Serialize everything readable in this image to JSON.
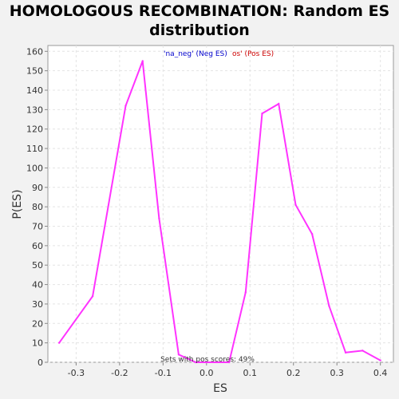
{
  "chart_data": {
    "type": "line",
    "title": "HOMOLOGOUS RECOMBINATION: Random ES distribution",
    "xlabel": "ES",
    "ylabel": "P(ES)",
    "xlim": [
      -0.365,
      0.43
    ],
    "ylim": [
      0,
      163
    ],
    "xticks": [
      -0.3,
      -0.2,
      -0.1,
      0.0,
      0.1,
      0.2,
      0.3,
      0.4
    ],
    "xtick_labels": [
      "-0.3",
      "-0.2",
      "-0.1",
      "0.0",
      "0.1",
      "0.2",
      "0.3",
      "0.4"
    ],
    "yticks": [
      0,
      10,
      20,
      30,
      40,
      50,
      60,
      70,
      80,
      90,
      100,
      110,
      120,
      130,
      140,
      150,
      160
    ],
    "grid": true,
    "legend": {
      "neg_text": "'na_neg' (Neg ES)",
      "pos_text": "os' (Pos ES)",
      "neg_color": "#0000cc",
      "pos_color": "#cc0000"
    },
    "annotation": "Sets with pos scores: 49%",
    "series": [
      {
        "color": "#ff33ff",
        "x": [
          -0.339,
          -0.262,
          -0.186,
          -0.147,
          -0.109,
          -0.064,
          -0.025,
          0.052,
          0.09,
          0.128,
          0.166,
          0.205,
          0.243,
          0.282,
          0.32,
          0.359,
          0.4
        ],
        "y": [
          10,
          34,
          132,
          155,
          74,
          4,
          0,
          0,
          36,
          128,
          133,
          81,
          66,
          29,
          5,
          6,
          1
        ]
      }
    ]
  }
}
